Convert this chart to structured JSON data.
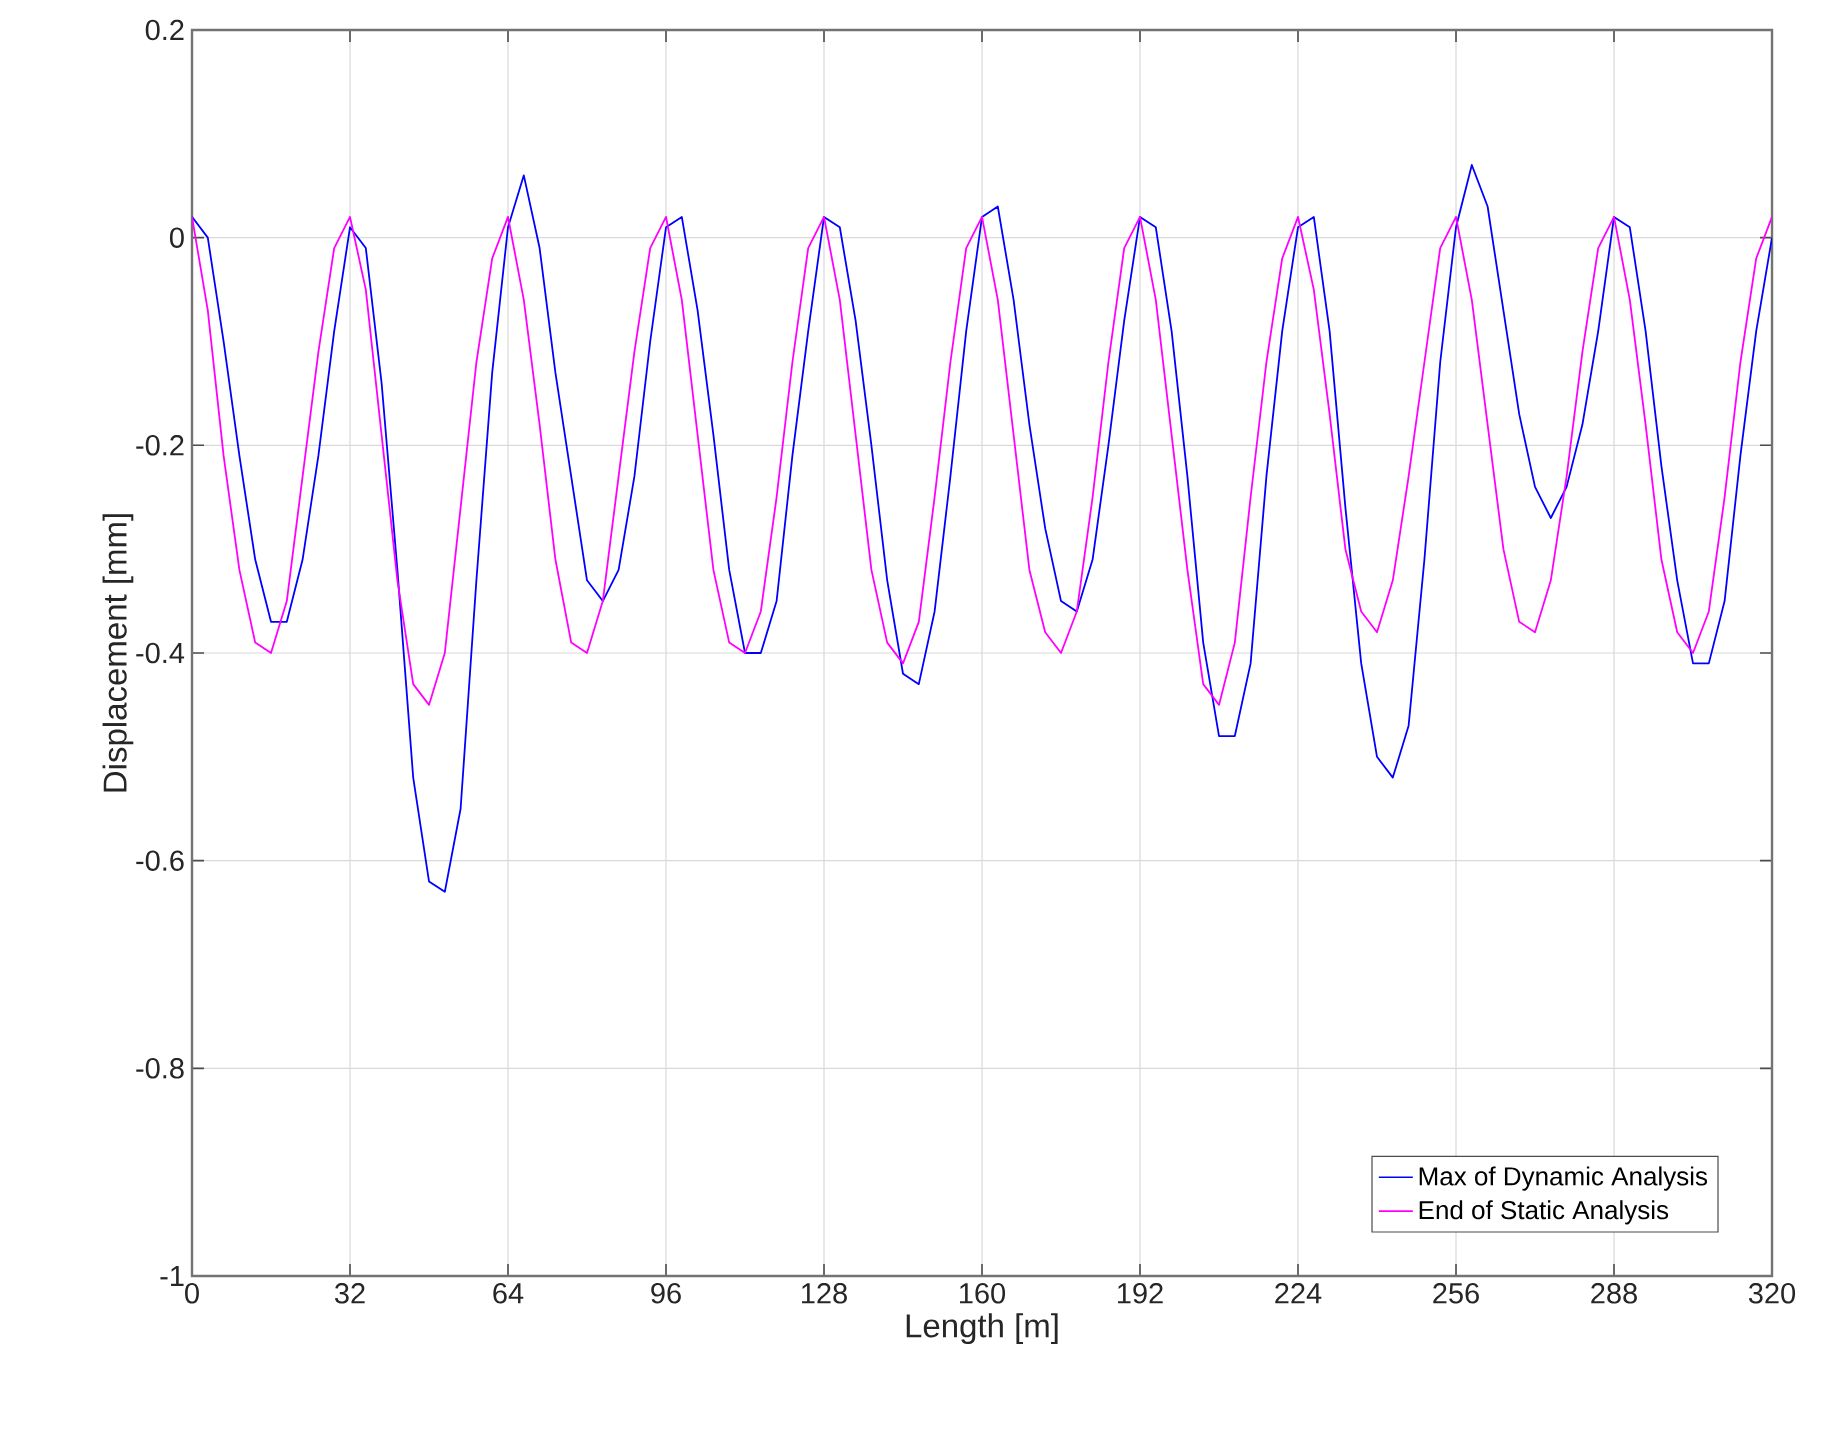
{
  "chart_data": {
    "type": "line",
    "xlabel": "Length [m]",
    "ylabel": "Displacement [mm]",
    "x": [
      0,
      3.2,
      6.4,
      9.6,
      12.8,
      16,
      19.2,
      22.4,
      25.6,
      28.8,
      32,
      35.2,
      38.4,
      41.6,
      44.8,
      48,
      51.2,
      54.4,
      57.6,
      60.8,
      64,
      67.2,
      70.4,
      73.6,
      76.8,
      80,
      83.2,
      86.4,
      89.6,
      92.8,
      96,
      99.2,
      102.4,
      105.6,
      108.8,
      112,
      115.2,
      118.4,
      121.6,
      124.8,
      128,
      131.2,
      134.4,
      137.6,
      140.8,
      144,
      147.2,
      150.4,
      153.6,
      156.8,
      160,
      163.2,
      166.4,
      169.6,
      172.8,
      176,
      179.2,
      182.4,
      185.6,
      188.8,
      192,
      195.2,
      198.4,
      201.6,
      204.8,
      208,
      211.2,
      214.4,
      217.6,
      220.8,
      224,
      227.2,
      230.4,
      233.6,
      236.8,
      240,
      243.2,
      246.4,
      249.6,
      252.8,
      256,
      259.2,
      262.4,
      265.6,
      268.8,
      272,
      275.2,
      278.4,
      281.6,
      284.8,
      288,
      291.2,
      294.4,
      297.6,
      300.8,
      304,
      307.2,
      310.4,
      313.6,
      316.8,
      320
    ],
    "series": [
      {
        "name": "Max of Dynamic Analysis",
        "color": "#0000ff",
        "values": [
          0.02,
          0.0,
          -0.1,
          -0.21,
          -0.31,
          -0.37,
          -0.37,
          -0.31,
          -0.21,
          -0.09,
          0.01,
          -0.01,
          -0.14,
          -0.32,
          -0.52,
          -0.62,
          -0.63,
          -0.55,
          -0.33,
          -0.13,
          0.01,
          0.06,
          -0.01,
          -0.13,
          -0.23,
          -0.33,
          -0.35,
          -0.32,
          -0.23,
          -0.1,
          0.01,
          0.02,
          -0.07,
          -0.19,
          -0.32,
          -0.4,
          -0.4,
          -0.35,
          -0.21,
          -0.09,
          0.02,
          0.01,
          -0.08,
          -0.2,
          -0.33,
          -0.42,
          -0.43,
          -0.36,
          -0.23,
          -0.09,
          0.02,
          0.03,
          -0.06,
          -0.18,
          -0.28,
          -0.35,
          -0.36,
          -0.31,
          -0.2,
          -0.08,
          0.02,
          0.01,
          -0.09,
          -0.23,
          -0.39,
          -0.48,
          -0.48,
          -0.41,
          -0.23,
          -0.09,
          0.01,
          0.02,
          -0.09,
          -0.26,
          -0.41,
          -0.5,
          -0.52,
          -0.47,
          -0.31,
          -0.12,
          0.01,
          0.07,
          0.03,
          -0.07,
          -0.17,
          -0.24,
          -0.27,
          -0.24,
          -0.18,
          -0.09,
          0.02,
          0.01,
          -0.09,
          -0.22,
          -0.33,
          -0.41,
          -0.41,
          -0.35,
          -0.21,
          -0.09,
          0.0
        ]
      },
      {
        "name": "End of Static Analysis",
        "color": "#ff00ff",
        "values": [
          0.02,
          -0.07,
          -0.21,
          -0.32,
          -0.39,
          -0.4,
          -0.35,
          -0.23,
          -0.11,
          -0.01,
          0.02,
          -0.05,
          -0.19,
          -0.33,
          -0.43,
          -0.45,
          -0.4,
          -0.26,
          -0.12,
          -0.02,
          0.02,
          -0.06,
          -0.18,
          -0.31,
          -0.39,
          -0.4,
          -0.35,
          -0.23,
          -0.11,
          -0.01,
          0.02,
          -0.06,
          -0.19,
          -0.32,
          -0.39,
          -0.4,
          -0.36,
          -0.25,
          -0.12,
          -0.01,
          0.02,
          -0.06,
          -0.19,
          -0.32,
          -0.39,
          -0.41,
          -0.37,
          -0.25,
          -0.12,
          -0.01,
          0.02,
          -0.06,
          -0.19,
          -0.32,
          -0.38,
          -0.4,
          -0.36,
          -0.25,
          -0.12,
          -0.01,
          0.02,
          -0.06,
          -0.19,
          -0.32,
          -0.43,
          -0.45,
          -0.39,
          -0.25,
          -0.12,
          -0.02,
          0.02,
          -0.05,
          -0.17,
          -0.3,
          -0.36,
          -0.38,
          -0.33,
          -0.23,
          -0.12,
          -0.01,
          0.02,
          -0.06,
          -0.18,
          -0.3,
          -0.37,
          -0.38,
          -0.33,
          -0.23,
          -0.11,
          -0.01,
          0.02,
          -0.06,
          -0.18,
          -0.31,
          -0.38,
          -0.4,
          -0.36,
          -0.25,
          -0.12,
          -0.02,
          0.02
        ]
      }
    ],
    "xlim": [
      0,
      320
    ],
    "ylim": [
      -1,
      0.2
    ],
    "xticks": [
      0,
      32,
      64,
      96,
      128,
      160,
      192,
      224,
      256,
      288,
      320
    ],
    "yticks": [
      -1,
      -0.8,
      -0.6,
      -0.4,
      -0.2,
      0,
      0.2
    ],
    "grid": true,
    "legend": "bottom right"
  }
}
